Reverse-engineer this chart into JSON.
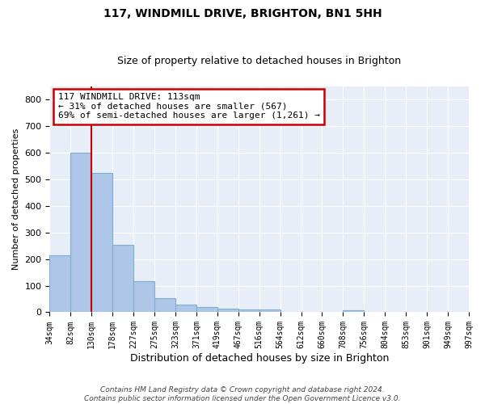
{
  "title1": "117, WINDMILL DRIVE, BRIGHTON, BN1 5HH",
  "title2": "Size of property relative to detached houses in Brighton",
  "xlabel": "Distribution of detached houses by size in Brighton",
  "ylabel": "Number of detached properties",
  "footer1": "Contains HM Land Registry data © Crown copyright and database right 2024.",
  "footer2": "Contains public sector information licensed under the Open Government Licence v3.0.",
  "annotation_line1": "117 WINDMILL DRIVE: 113sqm",
  "annotation_line2": "← 31% of detached houses are smaller (567)",
  "annotation_line3": "69% of semi-detached houses are larger (1,261) →",
  "bar_values": [
    215,
    600,
    525,
    255,
    117,
    52,
    30,
    20,
    15,
    10,
    10,
    0,
    0,
    0,
    8,
    0,
    0,
    0,
    0,
    0
  ],
  "categories": [
    "34sqm",
    "82sqm",
    "130sqm",
    "178sqm",
    "227sqm",
    "275sqm",
    "323sqm",
    "371sqm",
    "419sqm",
    "467sqm",
    "516sqm",
    "564sqm",
    "612sqm",
    "660sqm",
    "708sqm",
    "756sqm",
    "804sqm",
    "853sqm",
    "901sqm",
    "949sqm",
    "997sqm"
  ],
  "bar_color": "#aec6e8",
  "bar_edge_color": "#7bafd4",
  "vline_x": 2.0,
  "vline_color": "#cc0000",
  "bg_color": "#e8eef7",
  "grid_color": "#ffffff",
  "ylim": [
    0,
    850
  ],
  "yticks": [
    0,
    100,
    200,
    300,
    400,
    500,
    600,
    700,
    800
  ],
  "annotation_box_color": "#cc0000",
  "annotation_box_facecolor": "#ffffff",
  "title1_fontsize": 10,
  "title2_fontsize": 9,
  "ylabel_fontsize": 8,
  "xlabel_fontsize": 9,
  "tick_fontsize": 8,
  "xtick_fontsize": 7,
  "footer_fontsize": 6.5,
  "annot_fontsize": 8
}
